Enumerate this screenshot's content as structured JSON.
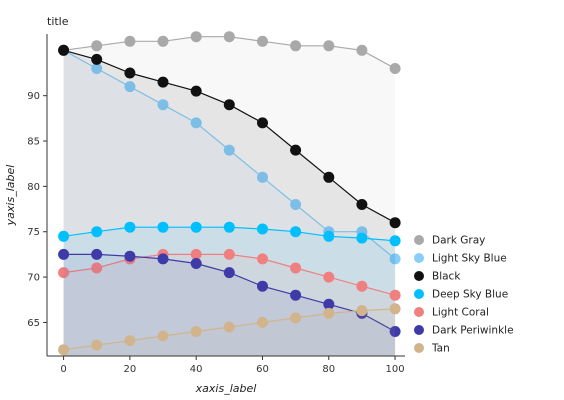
{
  "chart_data": {
    "type": "line",
    "title": "title",
    "xlabel": "xaxis_label",
    "ylabel": "yaxis_label",
    "xlim": [
      -5,
      103
    ],
    "ylim": [
      61.3,
      96.8
    ],
    "x_ticks": [
      0,
      20,
      40,
      60,
      80,
      100
    ],
    "y_ticks": [
      65,
      70,
      75,
      80,
      85,
      90
    ],
    "grid": false,
    "legend_position": "right",
    "x": [
      0,
      10,
      20,
      30,
      40,
      50,
      60,
      70,
      80,
      90,
      100
    ],
    "series": [
      {
        "name": "Dark Gray",
        "color": "#a9a9a9",
        "values": [
          95,
          95.5,
          96,
          96,
          96.5,
          96.5,
          96,
          95.5,
          95.5,
          95,
          93
        ]
      },
      {
        "name": "Light Sky Blue",
        "color": "#87cefa",
        "values": [
          95,
          93,
          91,
          89,
          87,
          84,
          81,
          78,
          75,
          75,
          72
        ]
      },
      {
        "name": "Black",
        "color": "#111111",
        "values": [
          95,
          94,
          92.5,
          91.5,
          90.5,
          89,
          87,
          84,
          81,
          78,
          76
        ]
      },
      {
        "name": "Deep Sky Blue",
        "color": "#00bfff",
        "values": [
          74.5,
          75,
          75.5,
          75.5,
          75.5,
          75.5,
          75.3,
          75,
          74.5,
          74.3,
          74
        ]
      },
      {
        "name": "Light Coral",
        "color": "#f08080",
        "values": [
          70.5,
          71,
          72,
          72.5,
          72.5,
          72.5,
          72,
          71,
          70,
          69,
          68
        ]
      },
      {
        "name": "Dark Periwinkle",
        "color": "#3e3aa8",
        "values": [
          72.5,
          72.5,
          72.3,
          72,
          71.5,
          70.5,
          69,
          68,
          67,
          66,
          64
        ]
      },
      {
        "name": "Tan",
        "color": "#d2b48c",
        "values": [
          62,
          62.5,
          63,
          63.5,
          64,
          64.5,
          65,
          65.5,
          66,
          66.3,
          66.5
        ]
      }
    ]
  }
}
